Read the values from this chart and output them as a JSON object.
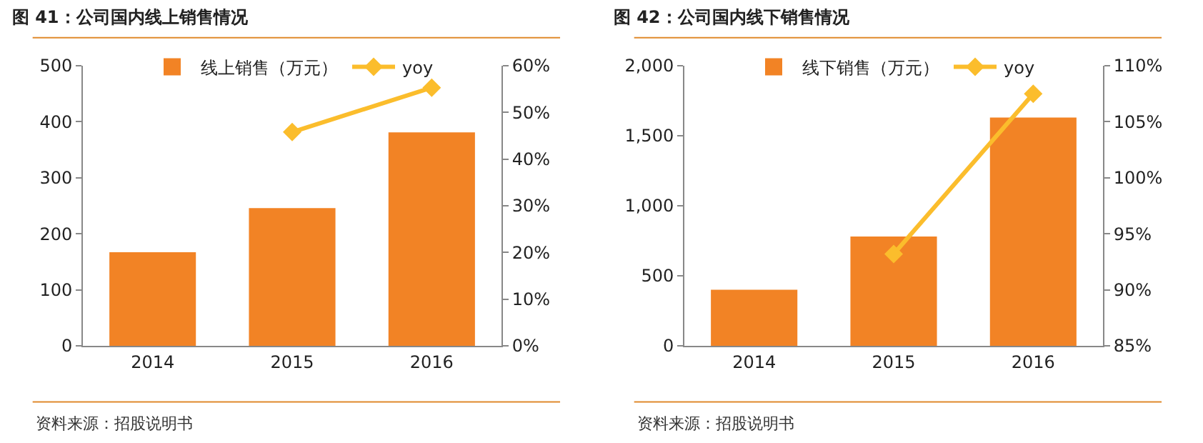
{
  "chart_data": [
    {
      "type": "bar",
      "title": "图 41：公司国内线上销售情况",
      "categories": [
        "2014",
        "2015",
        "2016"
      ],
      "series": [
        {
          "name": "线上销售（万元）",
          "color": "#f28325",
          "values": [
            167,
            246,
            381
          ]
        },
        {
          "name": "yoy",
          "type": "line",
          "axis": "y2",
          "color": "#fbbd2c",
          "values": [
            null,
            45.8,
            55.3
          ]
        }
      ],
      "ylim": [
        0,
        500
      ],
      "yticks": [
        0,
        100,
        200,
        300,
        400,
        500
      ],
      "y2lim": [
        0,
        60
      ],
      "y2ticks": [
        {
          "value": 0,
          "label": "0%"
        },
        {
          "value": 10,
          "label": "10%"
        },
        {
          "value": 20,
          "label": "20%"
        },
        {
          "value": 30,
          "label": "30%"
        },
        {
          "value": 40,
          "label": "40%"
        },
        {
          "value": 50,
          "label": "50%"
        },
        {
          "value": 60,
          "label": "60%"
        }
      ],
      "grid": false,
      "legend": "top",
      "marker": "diamond",
      "annotations": [
        "资料来源：招股说明书"
      ]
    },
    {
      "type": "bar",
      "title": "图 42：公司国内线下销售情况",
      "categories": [
        "2014",
        "2015",
        "2016"
      ],
      "series": [
        {
          "name": "线下销售（万元）",
          "color": "#f28325",
          "values": [
            400,
            780,
            1630
          ]
        },
        {
          "name": "yoy",
          "type": "line",
          "axis": "y2",
          "color": "#fbbd2c",
          "values": [
            null,
            93.2,
            107.5
          ]
        }
      ],
      "ylim": [
        0,
        2000
      ],
      "yticks": [
        0,
        500,
        {
          "value": 1000,
          "label": "1,000"
        },
        {
          "value": 1500,
          "label": "1,500"
        },
        {
          "value": 2000,
          "label": "2,000"
        }
      ],
      "y2lim": [
        85,
        110
      ],
      "y2ticks": [
        {
          "value": 85,
          "label": "85%"
        },
        {
          "value": 90,
          "label": "90%"
        },
        {
          "value": 95,
          "label": "95%"
        },
        {
          "value": 100,
          "label": "100%"
        },
        {
          "value": 105,
          "label": "105%"
        },
        {
          "value": 110,
          "label": "110%"
        }
      ],
      "grid": false,
      "legend": "top",
      "marker": "diamond",
      "annotations": [
        "资料来源：招股说明书"
      ]
    }
  ]
}
